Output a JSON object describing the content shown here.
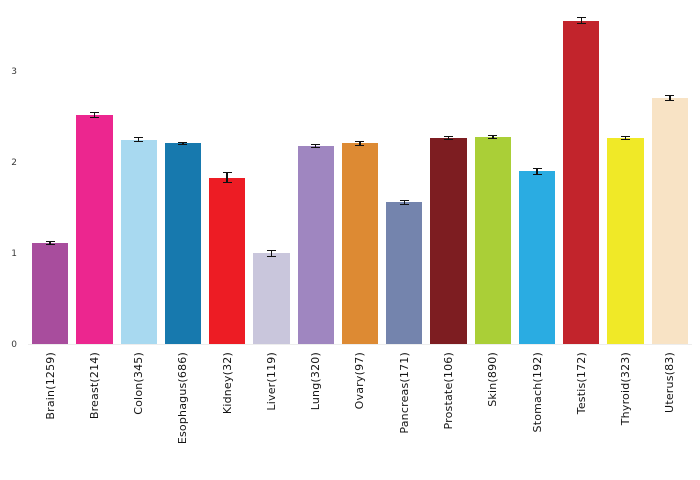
{
  "chart_data": {
    "type": "bar",
    "title": "",
    "xlabel": "",
    "ylabel": "",
    "categories": [
      "Brain(1259)",
      "Breast(214)",
      "Colon(345)",
      "Esophagus(686)",
      "Kidney(32)",
      "Liver(119)",
      "Lung(320)",
      "Ovary(97)",
      "Pancreas(171)",
      "Prostate(106)",
      "Skin(890)",
      "Stomach(192)",
      "Testis(172)",
      "Thyroid(323)",
      "Uterus(83)"
    ],
    "values": [
      1.11,
      2.52,
      2.25,
      2.21,
      1.83,
      1.0,
      2.18,
      2.21,
      1.56,
      2.27,
      2.28,
      1.9,
      3.56,
      2.27,
      2.71
    ],
    "errors": [
      0.02,
      0.03,
      0.025,
      0.015,
      0.06,
      0.04,
      0.02,
      0.03,
      0.03,
      0.02,
      0.02,
      0.04,
      0.04,
      0.02,
      0.03
    ],
    "bar_colors": [
      "#a84d9d",
      "#ec268f",
      "#a8d9f0",
      "#1779ae",
      "#ed1c24",
      "#c9c6dc",
      "#9f86c0",
      "#dd8a33",
      "#7484ad",
      "#7d1d21",
      "#aacf37",
      "#2aace2",
      "#c2242c",
      "#f0e927",
      "#f8e3c5"
    ],
    "error_bar_color": "#111111",
    "yticks": [
      0,
      1,
      2,
      3
    ],
    "ylim": [
      0,
      3.7
    ],
    "grid": false,
    "legend": "none",
    "background": "#ffffff",
    "x_tick_label_rotation": 90
  }
}
